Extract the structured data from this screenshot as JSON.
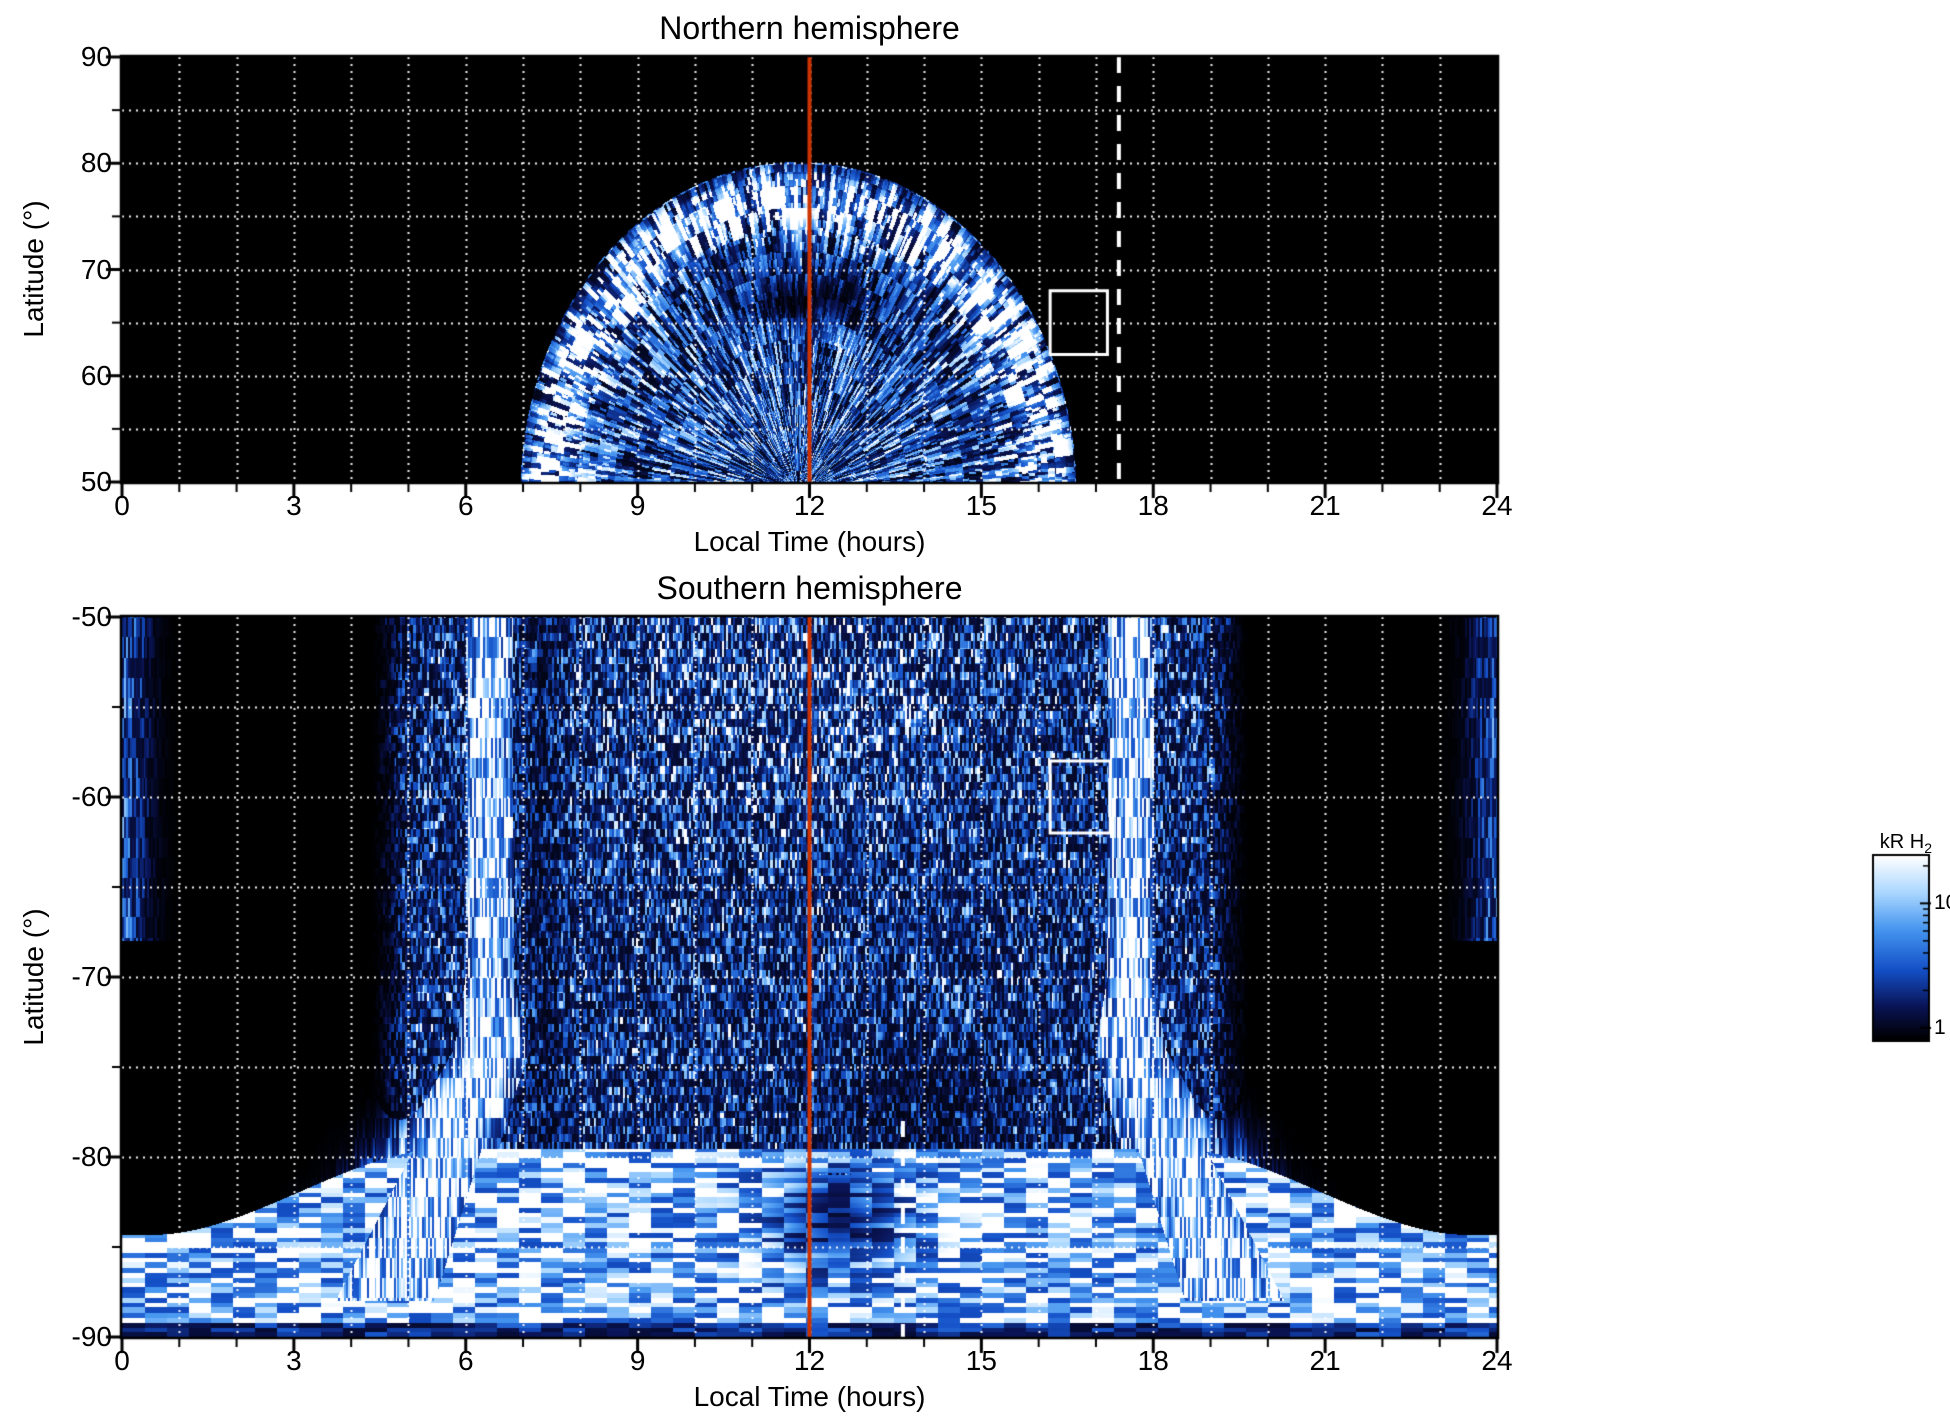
{
  "page_background": "#ffffff",
  "chart_data": [
    {
      "id": "northern",
      "type": "heatmap",
      "title": "Northern hemisphere",
      "xlabel": "Local Time (hours)",
      "ylabel": "Latitude (°)",
      "xlim": [
        0,
        24
      ],
      "ylim": [
        50,
        90
      ],
      "xticks": [
        0,
        3,
        6,
        9,
        12,
        15,
        18,
        21,
        24
      ],
      "yticks": [
        90,
        80,
        70,
        60,
        50
      ],
      "minor_x_step_hours": 1,
      "minor_y_step_deg": 5,
      "grid": {
        "style": "dotted",
        "color": "#ffffff"
      },
      "plot_background": "#000000",
      "annotations": [
        {
          "type": "vline",
          "x": 12,
          "line": "solid",
          "color": "#cc3300"
        },
        {
          "type": "vline",
          "x": 17.4,
          "line": "dashed",
          "color": "#ffffff"
        },
        {
          "type": "rect",
          "x0": 16.2,
          "x1": 17.2,
          "y0": 62,
          "y1": 68,
          "color": "#ffffff"
        }
      ],
      "emission_summary": {
        "shape": "dome of speckled auroral H2 emission centred near local noon",
        "local_time_extent_hours": [
          7,
          16.6
        ],
        "latitude_extent_deg": [
          50,
          80
        ],
        "bright_rim_kR": 15,
        "interior_speckle_kR": 3,
        "dark_patch": {
          "local_time_hours": [
            10.5,
            13.5
          ],
          "latitude_deg": [
            64,
            70
          ]
        }
      }
    },
    {
      "id": "southern",
      "type": "heatmap",
      "title": "Southern hemisphere",
      "xlabel": "Local Time (hours)",
      "ylabel": "Latitude (°)",
      "xlim": [
        0,
        24
      ],
      "ylim": [
        -90,
        -50
      ],
      "xticks": [
        0,
        3,
        6,
        9,
        12,
        15,
        18,
        21,
        24
      ],
      "yticks": [
        -50,
        -60,
        -70,
        -80,
        -90
      ],
      "minor_x_step_hours": 1,
      "minor_y_step_deg": 5,
      "grid": {
        "style": "dotted",
        "color": "#ffffff"
      },
      "plot_background": "#000000",
      "annotations": [
        {
          "type": "vline",
          "x": 12,
          "line": "solid",
          "color": "#cc3300"
        },
        {
          "type": "vline",
          "x": 13.63,
          "line": "dashed",
          "color": "#ffffff",
          "y0": -78,
          "y1": -90
        },
        {
          "type": "rect",
          "x0": 16.2,
          "x1": 17.25,
          "y0": -62,
          "y1": -58,
          "color": "#ffffff"
        }
      ],
      "emission_summary": {
        "shape": "widespread speckled H2 emission with bright dawn and dusk columns fanning toward the pole",
        "local_time_extent_hours": [
          4.5,
          19.5
        ],
        "latitude_extent_deg": [
          -90,
          -50
        ],
        "bright_columns_local_time_hours": [
          6.4,
          17.6
        ],
        "polar_arc_band_latitude_deg": [
          -90,
          -80
        ],
        "column_peak_kR": 20,
        "speckle_kR": 3
      }
    }
  ],
  "colorbar": {
    "label": "kR H",
    "label_sub": "2",
    "scale": "log",
    "tick_values": [
      10,
      1
    ],
    "tick_labels": [
      "10",
      "1"
    ],
    "range_kR": [
      0.8,
      24
    ],
    "stops": [
      {
        "p": 0.0,
        "c": "#000000"
      },
      {
        "p": 0.18,
        "c": "#0a1456"
      },
      {
        "p": 0.38,
        "c": "#1450c8"
      },
      {
        "p": 0.6,
        "c": "#4696f0"
      },
      {
        "p": 0.8,
        "c": "#aad7ff"
      },
      {
        "p": 1.0,
        "c": "#ffffff"
      }
    ]
  }
}
